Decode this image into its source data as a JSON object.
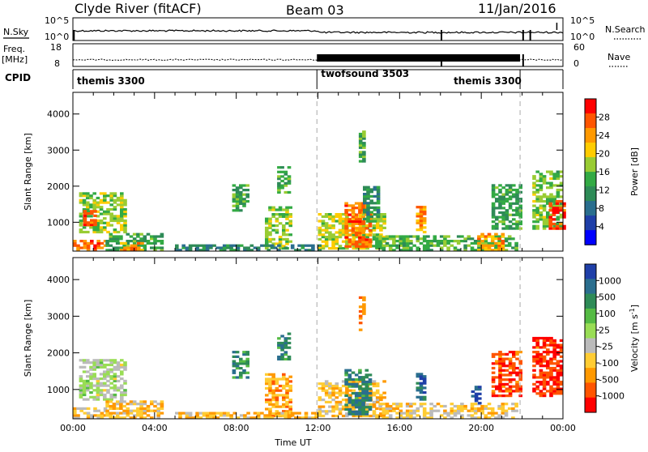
{
  "header": {
    "station": "Clyde River (fitACF)",
    "beam": "Beam 03",
    "date": "11/Jan/2016"
  },
  "top_strips": {
    "nsky_label": "N.Sky",
    "nsky_ticks": [
      "10^5",
      "10^0"
    ],
    "nsearch_label": "N.Search",
    "nsearch_ticks": [
      "10^5",
      "10^0"
    ],
    "freq_label_1": "Freq.",
    "freq_label_2": "[MHz]",
    "freq_ticks": [
      "18",
      "8"
    ],
    "nave_label": "Nave",
    "nave_ticks": [
      "60",
      "0"
    ],
    "cpid_label": "CPID"
  },
  "chart_data": [
    {
      "type": "heatmap",
      "name": "power",
      "ylabel": "Slant Range [km]",
      "ylim": [
        200,
        4600
      ],
      "yticks": [
        "1000",
        "2000",
        "3000",
        "4000"
      ],
      "x_range_hours": [
        0,
        24
      ],
      "colorbar": {
        "label": "Power [dB]",
        "ticks": [
          "28",
          "24",
          "20",
          "16",
          "12",
          "8",
          "4"
        ],
        "colors": [
          "#ff0000",
          "#ff5500",
          "#ff9900",
          "#ffcc00",
          "#99cc33",
          "#33aa44",
          "#2e8b57",
          "#2a6e8e",
          "#1f3fa8",
          "#0000ff"
        ]
      },
      "mode_blocks": [
        {
          "label": "themis 3300",
          "start": 0.0,
          "end": 11.95
        },
        {
          "label": "twofsound 3503",
          "start": 11.95,
          "end": 21.9
        },
        {
          "label": "themis 3300",
          "start": 21.9,
          "end": 24.0
        }
      ],
      "echo_regions": [
        {
          "t0": 0.3,
          "t1": 2.6,
          "r0": 700,
          "r1": 1800,
          "level": 0.55
        },
        {
          "t0": 0.5,
          "t1": 1.1,
          "r0": 900,
          "r1": 1300,
          "level": 0.9
        },
        {
          "t0": 0.0,
          "t1": 1.6,
          "r0": 200,
          "r1": 500,
          "level": 0.85
        },
        {
          "t0": 1.6,
          "t1": 4.3,
          "r0": 200,
          "r1": 700,
          "level": 0.4
        },
        {
          "t0": 2.3,
          "t1": 3.3,
          "r0": 200,
          "r1": 450,
          "level": 0.8
        },
        {
          "t0": 7.8,
          "t1": 8.5,
          "r0": 1300,
          "r1": 2000,
          "level": 0.4
        },
        {
          "t0": 9.4,
          "t1": 10.6,
          "r0": 250,
          "r1": 1400,
          "level": 0.55
        },
        {
          "t0": 10.0,
          "t1": 10.5,
          "r0": 1800,
          "r1": 2500,
          "level": 0.45
        },
        {
          "t0": 12.0,
          "t1": 15.2,
          "r0": 250,
          "r1": 1200,
          "level": 0.6
        },
        {
          "t0": 13.3,
          "t1": 14.6,
          "r0": 300,
          "r1": 1500,
          "level": 0.85
        },
        {
          "t0": 14.0,
          "t1": 14.3,
          "r0": 2600,
          "r1": 3500,
          "level": 0.45
        },
        {
          "t0": 14.2,
          "t1": 15.0,
          "r0": 1000,
          "r1": 2000,
          "level": 0.35
        },
        {
          "t0": 16.8,
          "t1": 17.2,
          "r0": 700,
          "r1": 1400,
          "level": 0.8
        },
        {
          "t0": 14.8,
          "t1": 21.8,
          "r0": 200,
          "r1": 600,
          "level": 0.45
        },
        {
          "t0": 19.8,
          "t1": 21.0,
          "r0": 200,
          "r1": 650,
          "level": 0.75
        },
        {
          "t0": 20.5,
          "t1": 22.0,
          "r0": 800,
          "r1": 2000,
          "level": 0.4
        },
        {
          "t0": 22.5,
          "t1": 24.0,
          "r0": 800,
          "r1": 2400,
          "level": 0.5
        },
        {
          "t0": 23.3,
          "t1": 24.0,
          "r0": 800,
          "r1": 1600,
          "level": 0.95
        },
        {
          "t0": 5.0,
          "t1": 12.0,
          "r0": 200,
          "r1": 350,
          "level": 0.3
        }
      ]
    },
    {
      "type": "heatmap",
      "name": "velocity",
      "ylabel": "Slant Range [km]",
      "xlabel": "Time UT",
      "ylim": [
        200,
        4600
      ],
      "yticks": [
        "1000",
        "2000",
        "3000",
        "4000"
      ],
      "xticks": [
        "00:00",
        "04:00",
        "08:00",
        "12:00",
        "16:00",
        "20:00",
        "00:00"
      ],
      "x_range_hours": [
        0,
        24
      ],
      "colorbar": {
        "label": "Velocity [m s",
        "label_sup": "-1",
        "label_end": "]",
        "ticks": [
          "1000",
          "500",
          "100",
          "25",
          "-25",
          "-100",
          "-500",
          "-1000"
        ],
        "colors": [
          "#1f3fa8",
          "#2a6e8e",
          "#2e8b57",
          "#55bb44",
          "#99dd55",
          "#bbbbbb",
          "#ffcc33",
          "#ff9900",
          "#ff5500",
          "#ff0000"
        ]
      },
      "echo_regions": [
        {
          "t0": 0.3,
          "t1": 2.6,
          "r0": 700,
          "r1": 1800,
          "level": 0.5
        },
        {
          "t0": 0.0,
          "t1": 1.6,
          "r0": 200,
          "r1": 500,
          "level": 0.35
        },
        {
          "t0": 1.6,
          "t1": 4.3,
          "r0": 200,
          "r1": 700,
          "level": 0.3
        },
        {
          "t0": 7.8,
          "t1": 8.5,
          "r0": 1300,
          "r1": 2000,
          "level": 0.8
        },
        {
          "t0": 9.4,
          "t1": 10.6,
          "r0": 250,
          "r1": 1400,
          "level": 0.25
        },
        {
          "t0": 10.0,
          "t1": 10.5,
          "r0": 1800,
          "r1": 2500,
          "level": 0.8
        },
        {
          "t0": 12.0,
          "t1": 15.2,
          "r0": 250,
          "r1": 1200,
          "level": 0.3
        },
        {
          "t0": 13.3,
          "t1": 14.6,
          "r0": 300,
          "r1": 1500,
          "level": 0.82
        },
        {
          "t0": 14.0,
          "t1": 14.3,
          "r0": 2600,
          "r1": 3500,
          "level": 0.15
        },
        {
          "t0": 16.8,
          "t1": 17.2,
          "r0": 700,
          "r1": 1400,
          "level": 0.9
        },
        {
          "t0": 14.8,
          "t1": 21.8,
          "r0": 200,
          "r1": 600,
          "level": 0.35
        },
        {
          "t0": 19.5,
          "t1": 20.0,
          "r0": 600,
          "r1": 1100,
          "level": 0.95
        },
        {
          "t0": 20.5,
          "t1": 22.0,
          "r0": 800,
          "r1": 2000,
          "level": 0.08
        },
        {
          "t0": 22.5,
          "t1": 24.0,
          "r0": 800,
          "r1": 2400,
          "level": 0.05
        },
        {
          "t0": 5.0,
          "t1": 12.0,
          "r0": 200,
          "r1": 350,
          "level": 0.3
        }
      ]
    }
  ]
}
